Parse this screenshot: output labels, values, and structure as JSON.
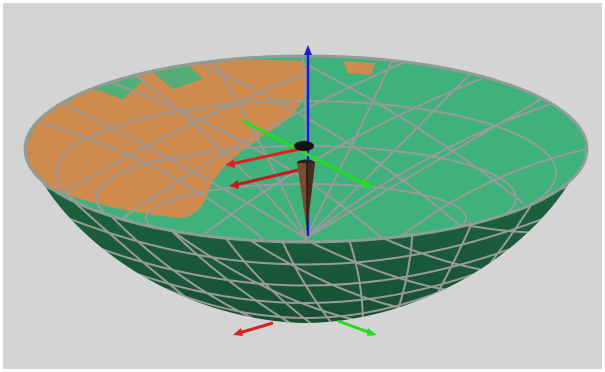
{
  "viewport": {
    "background": "#d4d4d4",
    "object": "paraboloid-bowl"
  },
  "colors": {
    "interior_green": "#3fb27c",
    "interior_orange": "#cf8a4d",
    "exterior_green": "#1f6b45",
    "exterior_shadow": "#133f28",
    "grid_lines": "#9a9a9a",
    "rim": "#8e9d95",
    "axis_x": "#e02020",
    "axis_y": "#22dd22",
    "axis_z": "#1a1ae0",
    "cone": "#7a4a33"
  },
  "gizmos": [
    {
      "name": "world-origin-axes",
      "axes": [
        "x",
        "y"
      ]
    },
    {
      "name": "center-frame-axes",
      "axes": [
        "x",
        "y",
        "z"
      ]
    },
    {
      "name": "cone-marker",
      "shape": "cone"
    }
  ]
}
